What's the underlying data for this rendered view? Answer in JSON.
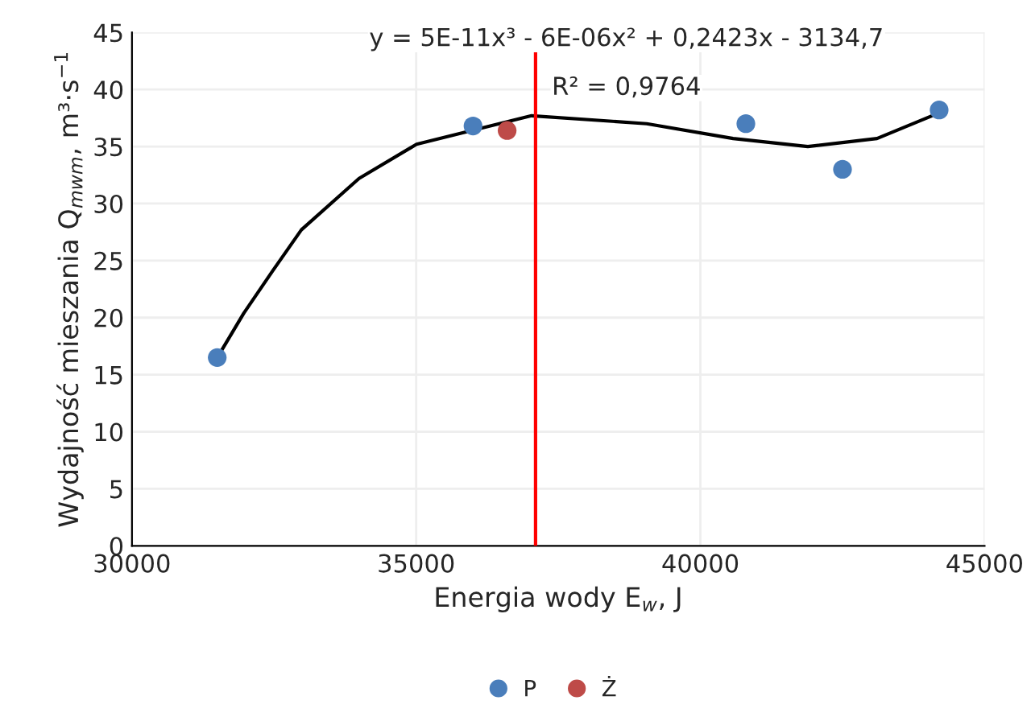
{
  "chart_data": {
    "type": "scatter",
    "xlabel": "Energia wody E$_{w}$, J",
    "ylabel": "Wydajność mieszania Q$_{mwm}$, m³·s$^{−1}$",
    "xlim": [
      30000,
      45000
    ],
    "xticks": [
      30000,
      35000,
      40000,
      45000
    ],
    "ylim": [
      0,
      45
    ],
    "yticks": [
      0,
      5,
      10,
      15,
      20,
      25,
      30,
      35,
      40,
      45
    ],
    "grid": true,
    "legend": "bottom",
    "series": [
      {
        "type": "line",
        "color": "#000000",
        "x": [
          31514,
          31968,
          32475,
          32980,
          33995,
          35007,
          37030,
          39056,
          40576,
          41890,
          43107,
          44222
        ],
        "values": [
          16.6,
          20.4,
          24.1,
          27.7,
          32.2,
          35.2,
          37.7,
          37.0,
          35.7,
          35.0,
          35.7,
          38.0
        ]
      },
      {
        "name": "P",
        "color": "#4a7ebb",
        "marker": "circle",
        "x": [
          31500,
          36000,
          40800,
          42500,
          44200
        ],
        "values": [
          16.5,
          36.8,
          37.0,
          33.0,
          38.2
        ]
      },
      {
        "name": "Ż",
        "color": "#be4b48",
        "marker": "circle",
        "x": [
          36600
        ],
        "values": [
          36.4
        ]
      }
    ],
    "ref_lines": [
      {
        "axis": "x",
        "value": 37100,
        "color": "#ff0000"
      }
    ],
    "annotations": [
      "y = 5E-11x³ - 6E-06x² + 0,2423x - 3134,7",
      "R² = 0,9764"
    ]
  }
}
